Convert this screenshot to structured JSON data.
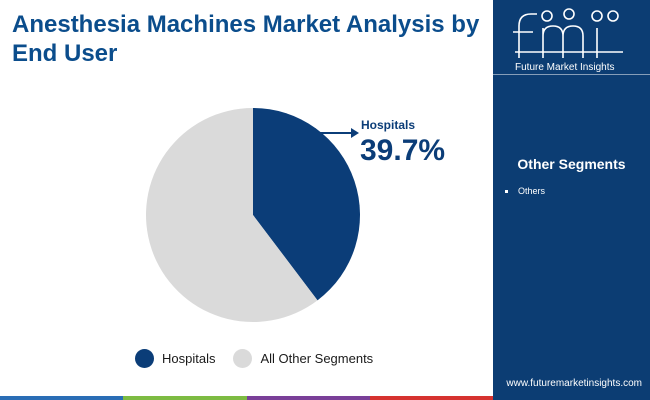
{
  "title": "Anesthesia Machines Market Analysis by End User",
  "chart_data": {
    "type": "pie",
    "categories": [
      "Hospitals",
      "All Other Segments"
    ],
    "values": [
      39.7,
      60.3
    ],
    "colors": [
      "#0b3d78",
      "#dadada"
    ],
    "callout": {
      "label": "Hospitals",
      "value": "39.7%"
    },
    "legend_position": "bottom"
  },
  "legend": [
    {
      "label": "Hospitals",
      "color": "#0b3d78"
    },
    {
      "label": "All Other Segments",
      "color": "#dadada"
    }
  ],
  "side_panel": {
    "brand_text": "Future Market Insights",
    "segments_title": "Other Segments",
    "segments": [
      "Others"
    ],
    "website": "www.futuremarketinsights.com"
  },
  "colors": {
    "accent": "#0b4d8c",
    "panel": "#0c3d73",
    "bottom_bar": [
      "#2a6db5",
      "#7dbb42",
      "#7a3f98",
      "#d6322f"
    ]
  }
}
